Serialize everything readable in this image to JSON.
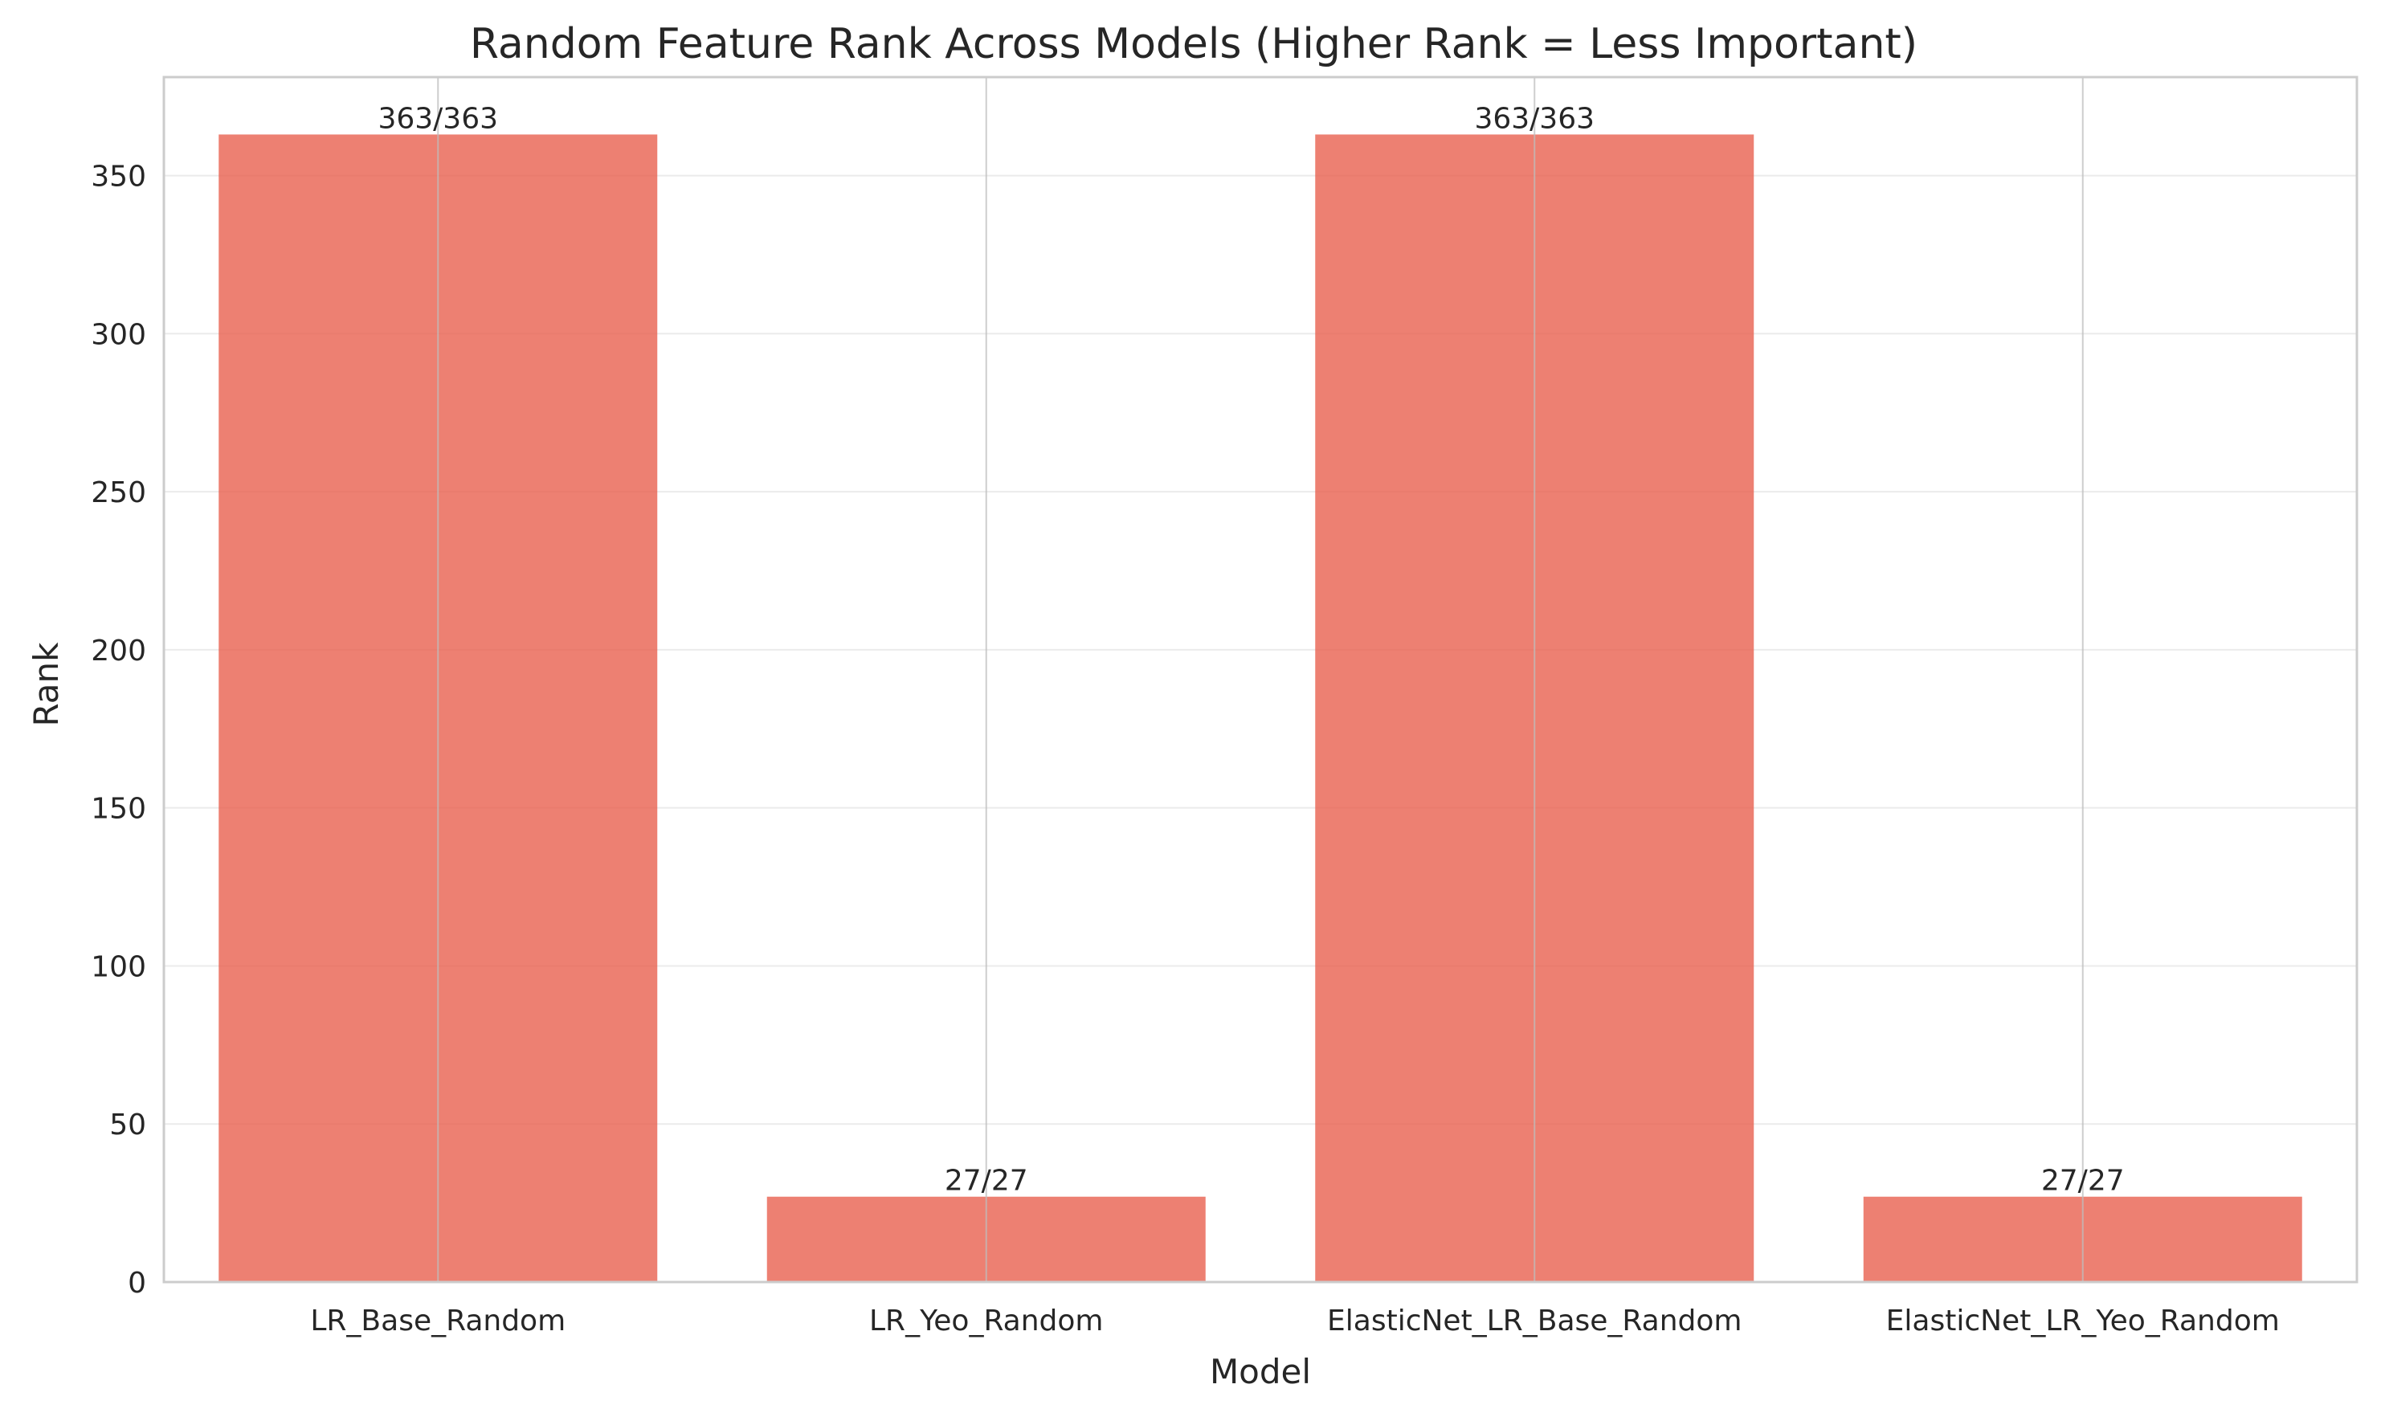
{
  "chart_data": {
    "type": "bar",
    "title": "Random Feature Rank Across Models (Higher Rank = Less Important)",
    "xlabel": "Model",
    "ylabel": "Rank",
    "categories": [
      "LR_Base_Random",
      "LR_Yeo_Random",
      "ElasticNet_LR_Base_Random",
      "ElasticNet_LR_Yeo_Random"
    ],
    "values": [
      363,
      27,
      363,
      27
    ],
    "data_labels": [
      "363/363",
      "27/27",
      "363/363",
      "27/27"
    ],
    "ylim": [
      0,
      381.15
    ],
    "yticks": [
      0,
      50,
      100,
      150,
      200,
      250,
      300,
      350
    ],
    "grid": true,
    "bar_color": "#e8604f",
    "legend": "none"
  }
}
